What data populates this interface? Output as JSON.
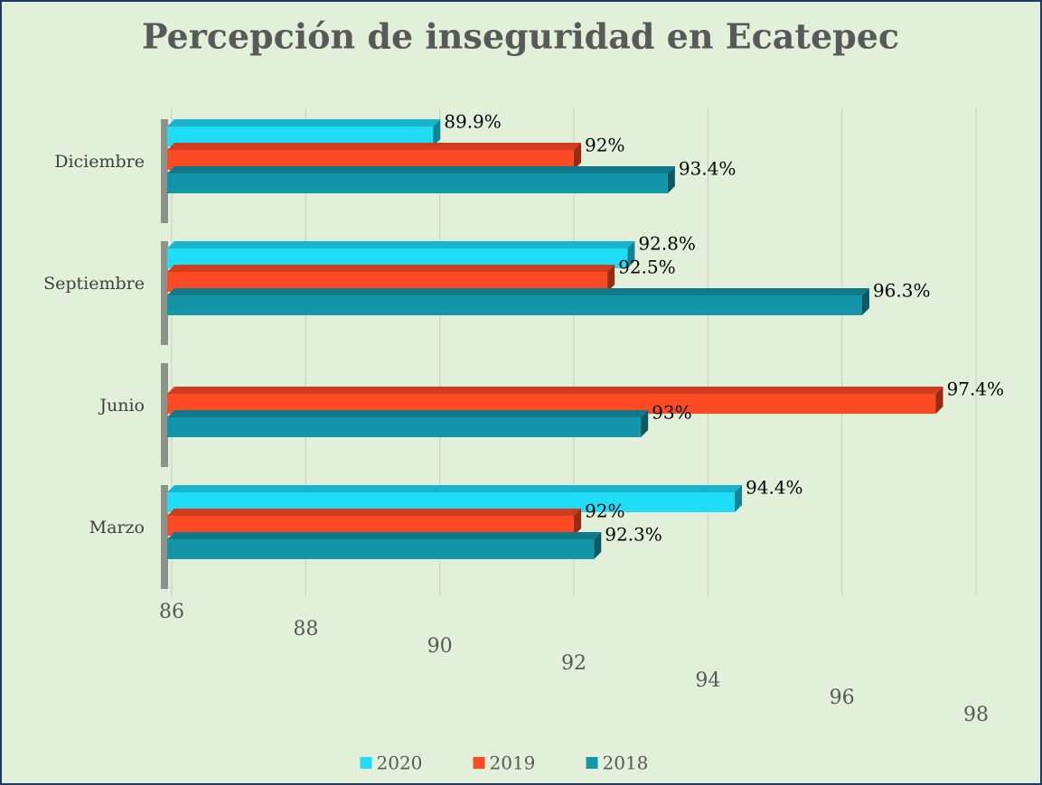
{
  "chart_data": {
    "type": "bar3d_horizontal",
    "title": "Percepción de inseguridad en Ecatepec",
    "categories": [
      "Diciembre",
      "Septiembre",
      "Junio",
      "Marzo"
    ],
    "series": [
      {
        "name": "2020",
        "color": "#1fdcf7",
        "values": [
          89.9,
          92.8,
          null,
          94.4
        ],
        "value_labels": [
          "89.9%",
          "92.8%",
          null,
          "94.4%"
        ]
      },
      {
        "name": "2019",
        "color": "#fc4a24",
        "values": [
          92,
          92.5,
          97.4,
          92
        ],
        "value_labels": [
          "92%",
          "92.5%",
          "97.4%",
          "92%"
        ]
      },
      {
        "name": "2018",
        "color": "#1495a8",
        "values": [
          93.4,
          96.3,
          93,
          92.3
        ],
        "value_labels": [
          "93.4%",
          "96.3%",
          "93%",
          "92.3%"
        ]
      }
    ],
    "xlim": [
      86,
      98
    ],
    "xticks": [
      86,
      88,
      90,
      92,
      94,
      96,
      98
    ],
    "grid": true,
    "legend": "bottom"
  }
}
